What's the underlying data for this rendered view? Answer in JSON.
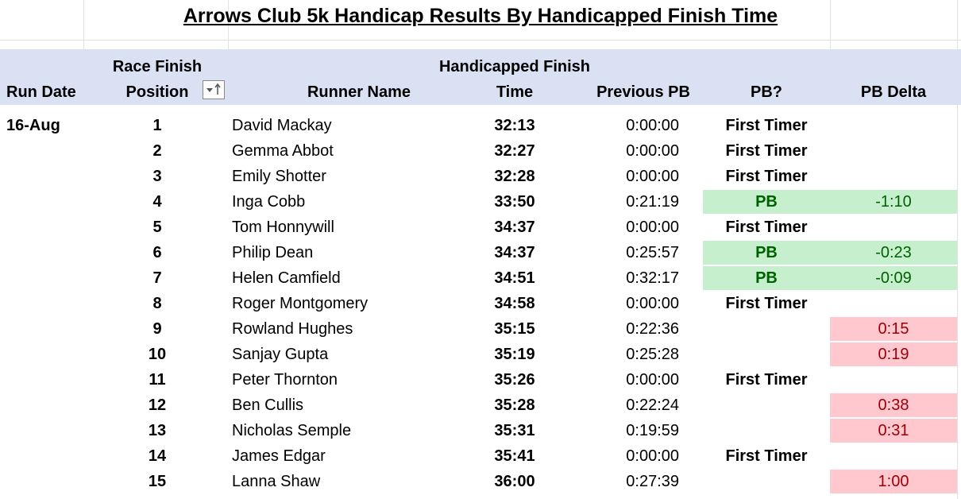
{
  "title": "Arrows Club 5k Handicap Results By Handicapped Finish Time",
  "table": {
    "header": [
      [
        "Run Date"
      ],
      [
        "Race Finish",
        "Position"
      ],
      [
        "Runner Name"
      ],
      [
        "Handicapped Finish",
        "Time"
      ],
      [
        "Previous PB"
      ],
      [
        "PB?"
      ],
      [
        "PB Delta"
      ]
    ],
    "rows": [
      [
        "16-Aug",
        1,
        "David Mackay",
        "32:13",
        "0:00:00",
        "First Timer",
        null
      ],
      [
        null,
        2,
        "Gemma Abbot",
        "32:27",
        "0:00:00",
        "First Timer",
        null
      ],
      [
        null,
        3,
        "Emily Shotter",
        "32:28",
        "0:00:00",
        "First Timer",
        null
      ],
      [
        null,
        4,
        "Inga Cobb",
        "33:50",
        "0:21:19",
        "PB",
        "-1:10"
      ],
      [
        null,
        5,
        "Tom Honnywill",
        "34:37",
        "0:00:00",
        "First Timer",
        null
      ],
      [
        null,
        6,
        "Philip Dean",
        "34:37",
        "0:25:57",
        "PB",
        "-0:23"
      ],
      [
        null,
        7,
        "Helen Camfield",
        "34:51",
        "0:32:17",
        "PB",
        "-0:09"
      ],
      [
        null,
        8,
        "Roger Montgomery",
        "34:58",
        "0:00:00",
        "First Timer",
        null
      ],
      [
        null,
        9,
        "Rowland Hughes",
        "35:15",
        "0:22:36",
        null,
        "0:15"
      ],
      [
        null,
        10,
        "Sanjay Gupta",
        "35:19",
        "0:25:28",
        null,
        "0:19"
      ],
      [
        null,
        11,
        "Peter Thornton",
        "35:26",
        "0:00:00",
        "First Timer",
        null
      ],
      [
        null,
        12,
        "Ben Cullis",
        "35:28",
        "0:22:24",
        null,
        "0:38"
      ],
      [
        null,
        13,
        "Nicholas Semple",
        "35:31",
        "0:19:59",
        null,
        "0:31"
      ],
      [
        null,
        14,
        "James Edgar",
        "35:41",
        "0:00:00",
        "First Timer",
        null
      ],
      [
        null,
        15,
        "Lanna Shaw",
        "36:00",
        "0:27:39",
        null,
        "1:00"
      ]
    ]
  }
}
